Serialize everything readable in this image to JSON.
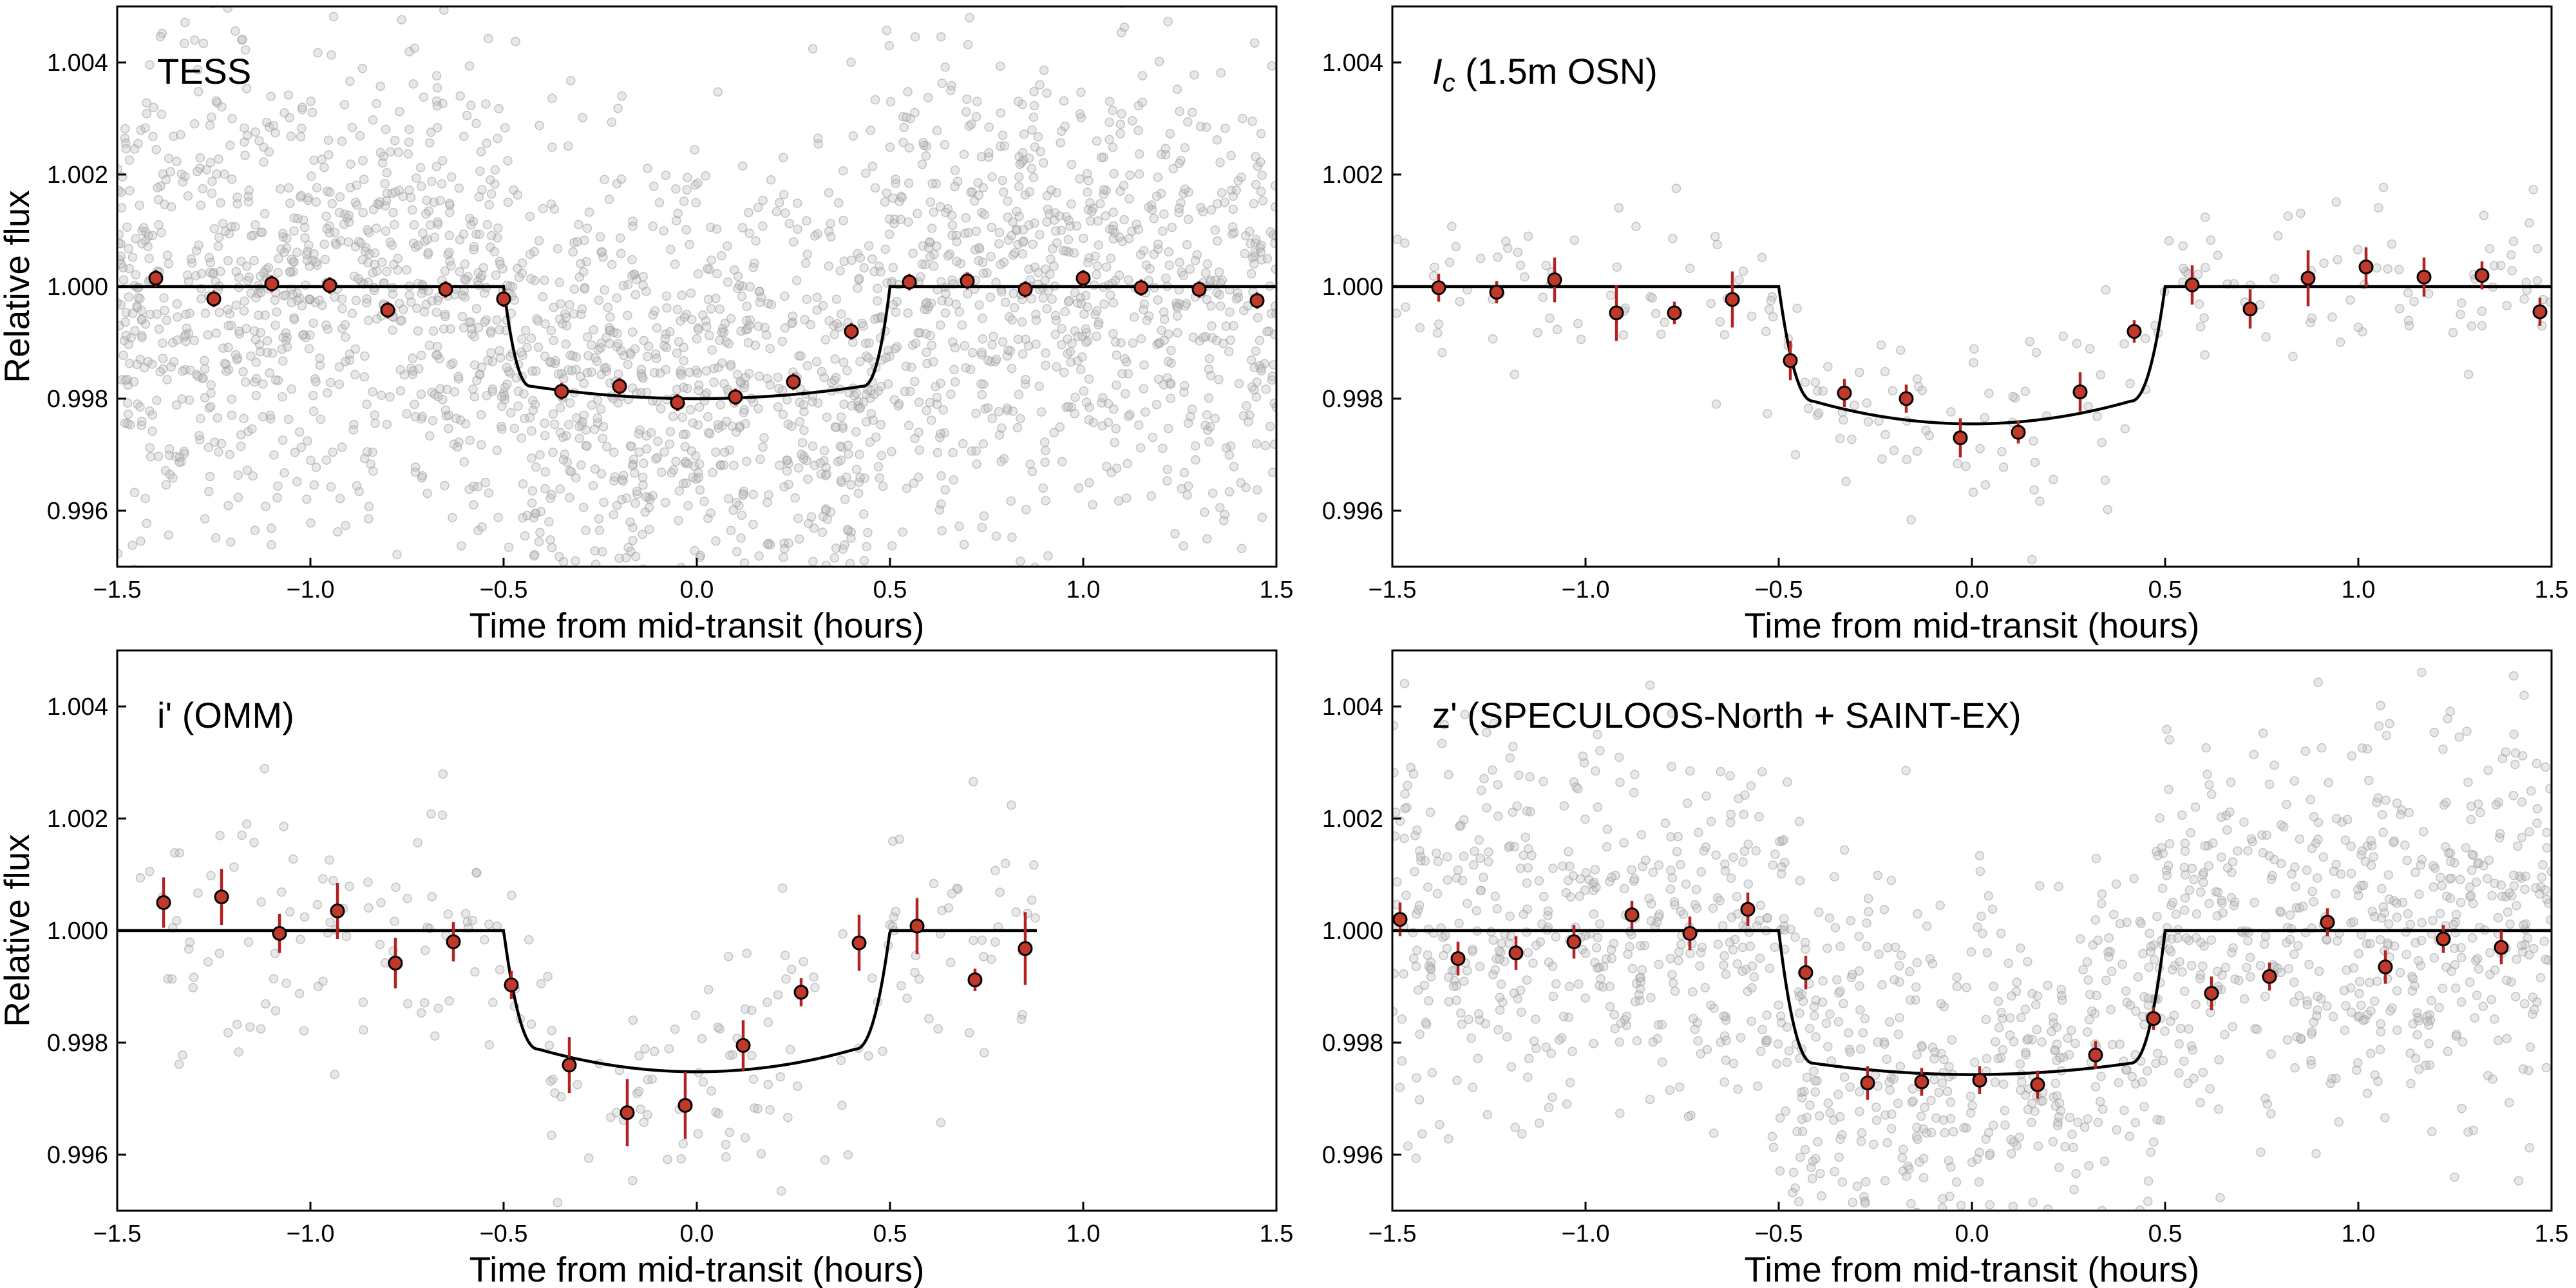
{
  "figure": {
    "type": "multi-panel transit light curves"
  },
  "chart_data": [
    {
      "type": "scatter",
      "id": "tess",
      "title": "TESS",
      "title_italic_part": "",
      "xlabel": "Time from mid-transit (hours)",
      "ylabel": "Relative flux",
      "xlim": [
        -1.5,
        1.5
      ],
      "ylim": [
        0.995,
        1.005
      ],
      "xticks": [
        -1.5,
        -1.0,
        -0.5,
        0.0,
        0.5,
        1.0,
        1.5
      ],
      "xtick_labels": [
        "−1.5",
        "−1.0",
        "−0.5",
        "0.0",
        "0.5",
        "1.0",
        "1.5"
      ],
      "yticks": [
        0.996,
        0.998,
        1.0,
        1.002,
        1.004
      ],
      "ytick_labels": [
        "0.996",
        "0.998",
        "1.000",
        "1.002",
        "1.004"
      ],
      "raw_points": {
        "count": 2600,
        "xmin": -1.5,
        "xmax": 1.5,
        "scatter": 0.0028,
        "color": "#bdbdbd"
      },
      "model": {
        "t_edge": 0.5,
        "t_ingress": 0.07,
        "baseline": 1.0,
        "depth_bottom": 0.998,
        "limb_curvature": 0.0003,
        "x_end": 1.5,
        "color": "#000000"
      },
      "binned": {
        "x": [
          -1.4,
          -1.25,
          -1.1,
          -0.95,
          -0.8,
          -0.65,
          -0.5,
          -0.35,
          -0.2,
          -0.05,
          0.1,
          0.25,
          0.4,
          0.55,
          0.7,
          0.85,
          1.0,
          1.15,
          1.3,
          1.45
        ],
        "y": [
          1.00015,
          0.99978,
          1.00005,
          1.00002,
          0.99958,
          0.99995,
          0.99978,
          0.99813,
          0.99822,
          0.99793,
          0.99803,
          0.9983,
          0.9992,
          1.00008,
          1.0001,
          0.99995,
          1.00015,
          0.99998,
          0.99995,
          0.99975
        ],
        "err": [
          0.00015,
          0.00015,
          0.00015,
          0.00015,
          0.00015,
          0.00015,
          0.00015,
          0.00015,
          0.00015,
          0.00015,
          0.00015,
          0.00015,
          0.00015,
          0.00015,
          0.00015,
          0.00015,
          0.00015,
          0.00015,
          0.00015,
          0.00015
        ]
      }
    },
    {
      "type": "scatter",
      "id": "osn",
      "title": " (1.5m OSN)",
      "title_italic_part": "I",
      "title_subscript": "c",
      "xlabel": "Time from mid-transit (hours)",
      "ylabel": "",
      "xlim": [
        -1.5,
        1.5
      ],
      "ylim": [
        0.995,
        1.005
      ],
      "xticks": [
        -1.5,
        -1.0,
        -0.5,
        0.0,
        0.5,
        1.0,
        1.5
      ],
      "xtick_labels": [
        "−1.5",
        "−1.0",
        "−0.5",
        "0.0",
        "0.5",
        "1.0",
        "1.5"
      ],
      "yticks": [
        0.996,
        0.998,
        1.0,
        1.002,
        1.004
      ],
      "ytick_labels": [
        "0.996",
        "0.998",
        "1.000",
        "1.002",
        "1.004"
      ],
      "raw_points": {
        "count": 230,
        "xmin": -1.5,
        "xmax": 1.5,
        "scatter": 0.0011,
        "color": "#bdbdbd"
      },
      "model": {
        "t_edge": 0.5,
        "t_ingress": 0.09,
        "baseline": 1.0,
        "depth_bottom": 0.99755,
        "limb_curvature": 0.0006,
        "x_end": 1.5,
        "color": "#000000"
      },
      "binned": {
        "x": [
          -1.38,
          -1.23,
          -1.08,
          -0.92,
          -0.77,
          -0.62,
          -0.47,
          -0.33,
          -0.17,
          -0.03,
          0.12,
          0.28,
          0.42,
          0.57,
          0.72,
          0.87,
          1.02,
          1.17,
          1.32,
          1.47
        ],
        "y": [
          0.99998,
          0.9999,
          1.00012,
          0.99953,
          0.99953,
          0.99977,
          0.99868,
          0.9981,
          0.998,
          0.9973,
          0.9974,
          0.99812,
          0.9992,
          1.00003,
          0.9996,
          1.00015,
          1.00035,
          1.00017,
          1.0002,
          0.99955
        ],
        "err": [
          0.00025,
          0.0002,
          0.0004,
          0.0005,
          0.0002,
          0.0005,
          0.00035,
          0.00025,
          0.00025,
          0.00035,
          0.0002,
          0.00035,
          0.0002,
          0.00035,
          0.00035,
          0.0005,
          0.00035,
          0.00035,
          0.00025,
          0.00025
        ]
      }
    },
    {
      "type": "scatter",
      "id": "omm",
      "title": "i' (OMM)",
      "title_italic_part": "",
      "xlabel": "Time from mid-transit (hours)",
      "ylabel": "Relative flux",
      "xlim": [
        -1.5,
        1.5
      ],
      "ylim": [
        0.995,
        1.005
      ],
      "xticks": [
        -1.5,
        -1.0,
        -0.5,
        0.0,
        0.5,
        1.0,
        1.5
      ],
      "xtick_labels": [
        "−1.5",
        "−1.0",
        "−0.5",
        "0.0",
        "0.5",
        "1.0",
        "1.5"
      ],
      "yticks": [
        0.996,
        0.998,
        1.0,
        1.002,
        1.004
      ],
      "ytick_labels": [
        "0.996",
        "0.998",
        "1.000",
        "1.002",
        "1.004"
      ],
      "raw_points": {
        "count": 240,
        "xmin": -1.45,
        "xmax": 0.88,
        "scatter": 0.0016,
        "color": "#bdbdbd"
      },
      "model": {
        "t_edge": 0.5,
        "t_ingress": 0.09,
        "baseline": 1.0,
        "depth_bottom": 0.99748,
        "limb_curvature": 0.0006,
        "x_end": 0.88,
        "color": "#000000"
      },
      "binned": {
        "x": [
          -1.38,
          -1.23,
          -1.08,
          -0.93,
          -0.78,
          -0.63,
          -0.48,
          -0.33,
          -0.18,
          -0.03,
          0.12,
          0.27,
          0.42,
          0.57,
          0.72,
          0.85
        ],
        "y": [
          1.0005,
          1.0006,
          0.99995,
          1.00035,
          0.99942,
          0.9998,
          0.99903,
          0.9976,
          0.99675,
          0.99688,
          0.99795,
          0.9989,
          0.99978,
          1.00008,
          0.99912,
          0.99968
        ],
        "err": [
          0.00045,
          0.0005,
          0.00035,
          0.0005,
          0.00045,
          0.00035,
          0.00025,
          0.0005,
          0.0006,
          0.0006,
          0.00045,
          0.00025,
          0.0005,
          0.0005,
          0.0002,
          0.00065
        ]
      }
    },
    {
      "type": "scatter",
      "id": "speculoos",
      "title": "z' (SPECULOOS-North + SAINT-EX)",
      "title_italic_part": "",
      "xlabel": "Time from mid-transit (hours)",
      "ylabel": "",
      "xlim": [
        -1.5,
        1.5
      ],
      "ylim": [
        0.995,
        1.005
      ],
      "xticks": [
        -1.5,
        -1.0,
        -0.5,
        0.0,
        0.5,
        1.0,
        1.5
      ],
      "xtick_labels": [
        "−1.5",
        "−1.0",
        "−0.5",
        "0.0",
        "0.5",
        "1.0",
        "1.5"
      ],
      "yticks": [
        0.996,
        0.998,
        1.0,
        1.002,
        1.004
      ],
      "ytick_labels": [
        "0.996",
        "0.998",
        "1.000",
        "1.002",
        "1.004"
      ],
      "raw_points": {
        "count": 1500,
        "xmin": -1.5,
        "xmax": 1.5,
        "scatter": 0.0022,
        "color": "#bdbdbd"
      },
      "model": {
        "t_edge": 0.5,
        "t_ingress": 0.09,
        "baseline": 1.0,
        "depth_bottom": 0.99743,
        "limb_curvature": 0.0003,
        "x_end": 1.5,
        "color": "#000000"
      },
      "binned": {
        "x": [
          -1.48,
          -1.33,
          -1.18,
          -1.03,
          -0.88,
          -0.73,
          -0.58,
          -0.43,
          -0.27,
          -0.13,
          0.02,
          0.17,
          0.32,
          0.47,
          0.62,
          0.77,
          0.92,
          1.07,
          1.22,
          1.37
        ],
        "y": [
          1.0002,
          0.9995,
          0.9996,
          0.9998,
          1.00028,
          0.99995,
          1.00038,
          0.99925,
          0.99728,
          0.9973,
          0.99733,
          0.99725,
          0.99778,
          0.99843,
          0.99888,
          0.99918,
          1.00015,
          0.99935,
          0.99985,
          0.9997
        ],
        "err": [
          0.0003,
          0.0003,
          0.0003,
          0.0003,
          0.00025,
          0.0003,
          0.0003,
          0.0003,
          0.0003,
          0.00025,
          0.00025,
          0.00025,
          0.00025,
          0.0002,
          0.0003,
          0.00025,
          0.00025,
          0.0003,
          0.00025,
          0.0003
        ]
      }
    }
  ],
  "style": {
    "binned_fill": "#c0392b",
    "binned_edge": "#000000",
    "error_bar": "#b22222",
    "axes_color": "#000000",
    "background": "#ffffff"
  }
}
